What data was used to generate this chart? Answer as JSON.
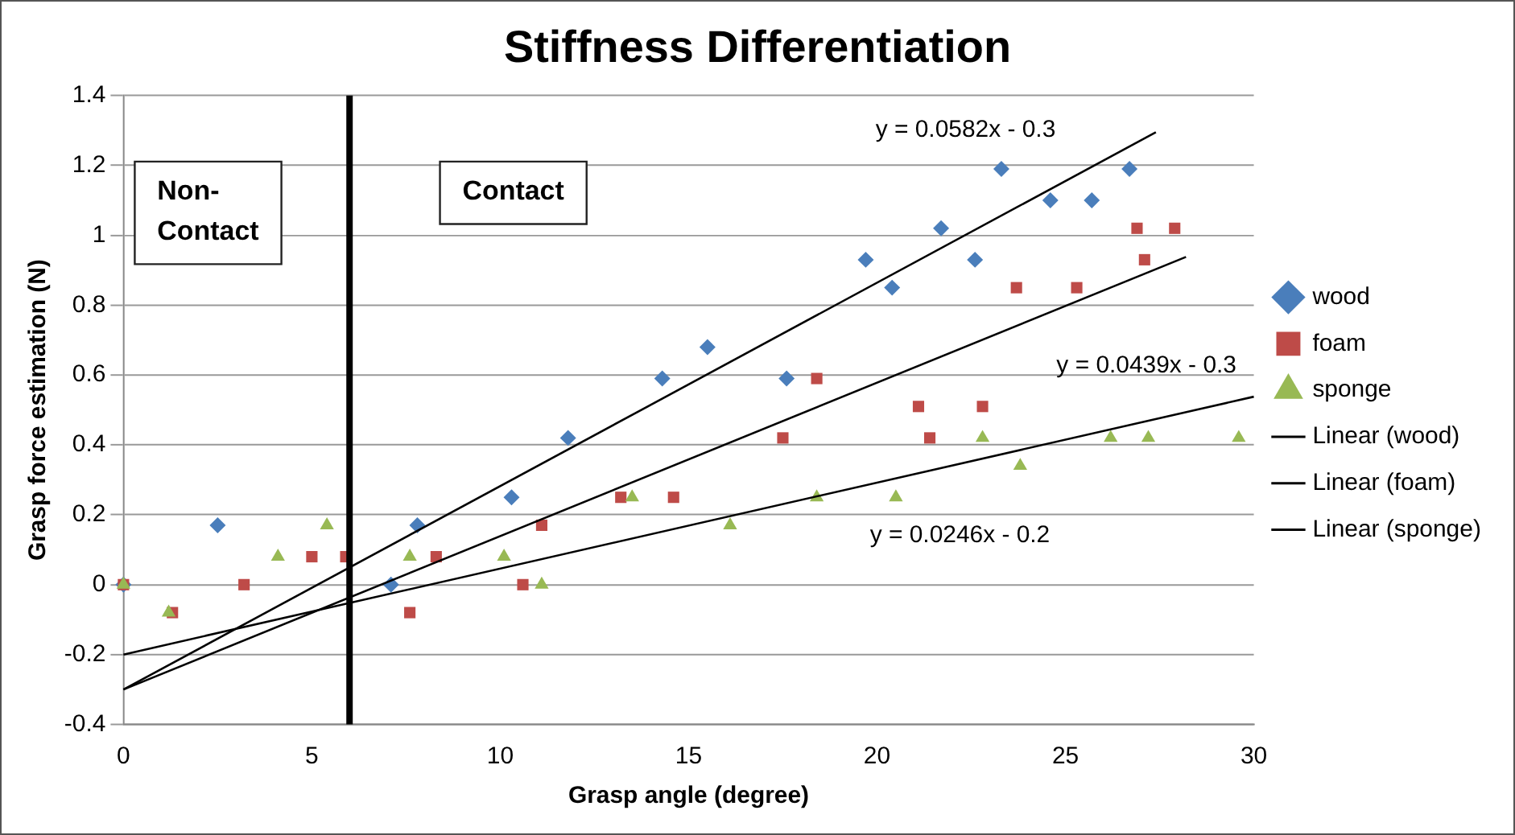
{
  "chart_data": {
    "type": "scatter",
    "title": "Stiffness Differentiation",
    "xlabel": "Grasp angle (degree)",
    "ylabel": "Grasp force estimation (N)",
    "xlim": [
      0,
      30
    ],
    "xticks": [
      0,
      5,
      10,
      15,
      20,
      25,
      30
    ],
    "ylim": [
      -0.4,
      1.4
    ],
    "yticks": [
      -0.4,
      -0.2,
      0,
      0.2,
      0.4,
      0.6,
      0.8,
      1,
      1.2,
      1.4
    ],
    "grid": "y",
    "legend": "right",
    "series": [
      {
        "name": "wood",
        "color": "#4a7ebb",
        "marker": "diamond",
        "x": [
          0,
          2.5,
          7.1,
          7.8,
          10.3,
          11.8,
          14.3,
          15.5,
          17.6,
          19.7,
          20.4,
          21.7,
          22.6,
          23.3,
          24.6,
          25.7,
          26.7
        ],
        "values": [
          0,
          0.17,
          0,
          0.17,
          0.25,
          0.42,
          0.59,
          0.68,
          0.59,
          0.93,
          0.85,
          1.02,
          0.93,
          1.19,
          1.1,
          1.1,
          1.19
        ]
      },
      {
        "name": "foam",
        "color": "#be4b48",
        "marker": "square",
        "x": [
          0,
          1.3,
          3.2,
          5,
          5.9,
          7.6,
          8.3,
          10.6,
          11.1,
          13.2,
          14.6,
          17.5,
          18.4,
          21.1,
          21.4,
          22.8,
          23.7,
          25.3,
          26.9,
          27.1,
          27.9
        ],
        "values": [
          0,
          -0.08,
          0,
          0.08,
          0.08,
          -0.08,
          0.08,
          0,
          0.17,
          0.25,
          0.25,
          0.42,
          0.59,
          0.51,
          0.42,
          0.51,
          0.85,
          0.85,
          1.02,
          0.93,
          1.02
        ]
      },
      {
        "name": "sponge",
        "color": "#98b954",
        "marker": "triangle",
        "x": [
          0,
          1.2,
          4.1,
          5.4,
          7.6,
          10.1,
          11.1,
          13.5,
          16.1,
          18.4,
          20.5,
          22.8,
          23.8,
          26.2,
          27.2,
          29.6
        ],
        "values": [
          0,
          -0.08,
          0.08,
          0.17,
          0.08,
          0.08,
          0,
          0.25,
          0.17,
          0.25,
          0.25,
          0.42,
          0.34,
          0.42,
          0.42,
          0.42
        ]
      },
      {
        "name": "Linear (wood)",
        "type": "line",
        "color": "#000000",
        "marker": "none",
        "x": [
          0,
          27.4
        ],
        "values": [
          -0.3,
          1.295
        ]
      },
      {
        "name": "Linear (foam)",
        "type": "line",
        "color": "#000000",
        "marker": "none",
        "x": [
          0,
          28.2
        ],
        "values": [
          -0.3,
          0.938
        ]
      },
      {
        "name": "Linear (sponge)",
        "type": "line",
        "color": "#000000",
        "marker": "none",
        "x": [
          0,
          30
        ],
        "values": [
          -0.2,
          0.538
        ]
      }
    ],
    "ref_lines": [
      {
        "axis": "x",
        "value": 6,
        "color": "#000000"
      }
    ],
    "annotations": [
      "Non-Contact",
      "Contact",
      "y = 0.0582x - 0.3",
      "y = 0.0439x - 0.3",
      "y = 0.0246x - 0.2"
    ]
  }
}
